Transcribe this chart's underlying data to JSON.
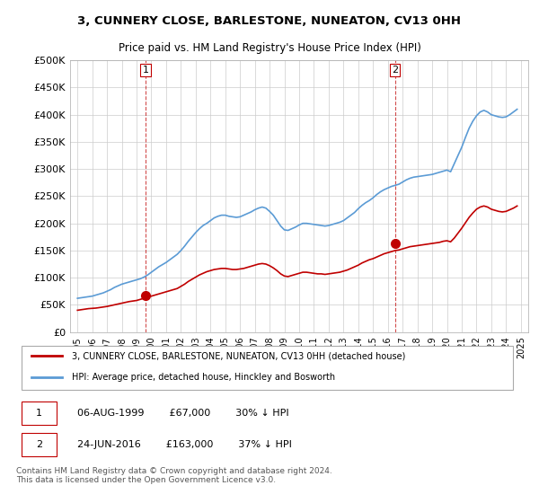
{
  "title": "3, CUNNERY CLOSE, BARLESTONE, NUNEATON, CV13 0HH",
  "subtitle": "Price paid vs. HM Land Registry's House Price Index (HPI)",
  "xlabel": "",
  "ylabel": "",
  "ylim": [
    0,
    500000
  ],
  "yticks": [
    0,
    50000,
    100000,
    150000,
    200000,
    250000,
    300000,
    350000,
    400000,
    450000,
    500000
  ],
  "ytick_labels": [
    "£0",
    "£50K",
    "£100K",
    "£150K",
    "£200K",
    "£250K",
    "£300K",
    "£350K",
    "£400K",
    "£450K",
    "£500K"
  ],
  "x_start_year": 1995,
  "x_end_year": 2025,
  "background_color": "#ffffff",
  "plot_bg_color": "#ffffff",
  "grid_color": "#cccccc",
  "hpi_color": "#5b9bd5",
  "price_color": "#c00000",
  "sale1_date": "1999-08-06",
  "sale1_price": 67000,
  "sale2_date": "2016-06-24",
  "sale2_price": 163000,
  "legend_label_price": "3, CUNNERY CLOSE, BARLESTONE, NUNEATON, CV13 0HH (detached house)",
  "legend_label_hpi": "HPI: Average price, detached house, Hinckley and Bosworth",
  "annotation1_label": "1",
  "annotation1_text": "06-AUG-1999        £67,000        30% ↓ HPI",
  "annotation2_label": "2",
  "annotation2_text": "24-JUN-2016        £163,000        37% ↓ HPI",
  "footer": "Contains HM Land Registry data © Crown copyright and database right 2024.\nThis data is licensed under the Open Government Licence v3.0.",
  "hpi_data": {
    "years": [
      1995.0,
      1995.25,
      1995.5,
      1995.75,
      1996.0,
      1996.25,
      1996.5,
      1996.75,
      1997.0,
      1997.25,
      1997.5,
      1997.75,
      1998.0,
      1998.25,
      1998.5,
      1998.75,
      1999.0,
      1999.25,
      1999.5,
      1999.75,
      2000.0,
      2000.25,
      2000.5,
      2000.75,
      2001.0,
      2001.25,
      2001.5,
      2001.75,
      2002.0,
      2002.25,
      2002.5,
      2002.75,
      2003.0,
      2003.25,
      2003.5,
      2003.75,
      2004.0,
      2004.25,
      2004.5,
      2004.75,
      2005.0,
      2005.25,
      2005.5,
      2005.75,
      2006.0,
      2006.25,
      2006.5,
      2006.75,
      2007.0,
      2007.25,
      2007.5,
      2007.75,
      2008.0,
      2008.25,
      2008.5,
      2008.75,
      2009.0,
      2009.25,
      2009.5,
      2009.75,
      2010.0,
      2010.25,
      2010.5,
      2010.75,
      2011.0,
      2011.25,
      2011.5,
      2011.75,
      2012.0,
      2012.25,
      2012.5,
      2012.75,
      2013.0,
      2013.25,
      2013.5,
      2013.75,
      2014.0,
      2014.25,
      2014.5,
      2014.75,
      2015.0,
      2015.25,
      2015.5,
      2015.75,
      2016.0,
      2016.25,
      2016.5,
      2016.75,
      2017.0,
      2017.25,
      2017.5,
      2017.75,
      2018.0,
      2018.25,
      2018.5,
      2018.75,
      2019.0,
      2019.25,
      2019.5,
      2019.75,
      2020.0,
      2020.25,
      2020.5,
      2020.75,
      2021.0,
      2021.25,
      2021.5,
      2021.75,
      2022.0,
      2022.25,
      2022.5,
      2022.75,
      2023.0,
      2023.25,
      2023.5,
      2023.75,
      2024.0,
      2024.25,
      2024.5,
      2024.75
    ],
    "values": [
      62000,
      63000,
      64000,
      65000,
      66000,
      68000,
      70000,
      72000,
      75000,
      78000,
      82000,
      85000,
      88000,
      90000,
      92000,
      94000,
      96000,
      98000,
      101000,
      105000,
      110000,
      115000,
      120000,
      124000,
      128000,
      133000,
      138000,
      143000,
      150000,
      158000,
      167000,
      175000,
      183000,
      190000,
      196000,
      200000,
      205000,
      210000,
      213000,
      215000,
      215000,
      213000,
      212000,
      211000,
      212000,
      215000,
      218000,
      221000,
      225000,
      228000,
      230000,
      228000,
      222000,
      215000,
      205000,
      195000,
      188000,
      187000,
      190000,
      193000,
      197000,
      200000,
      200000,
      199000,
      198000,
      197000,
      196000,
      195000,
      196000,
      198000,
      200000,
      202000,
      205000,
      210000,
      215000,
      220000,
      227000,
      233000,
      238000,
      242000,
      247000,
      253000,
      258000,
      262000,
      265000,
      268000,
      270000,
      272000,
      276000,
      280000,
      283000,
      285000,
      286000,
      287000,
      288000,
      289000,
      290000,
      292000,
      294000,
      296000,
      298000,
      295000,
      310000,
      325000,
      340000,
      358000,
      375000,
      388000,
      398000,
      405000,
      408000,
      405000,
      400000,
      398000,
      396000,
      395000,
      396000,
      400000,
      405000,
      410000
    ]
  },
  "price_index_data": {
    "years": [
      1995.0,
      1995.25,
      1995.5,
      1995.75,
      1996.0,
      1996.25,
      1996.5,
      1996.75,
      1997.0,
      1997.25,
      1997.5,
      1997.75,
      1998.0,
      1998.25,
      1998.5,
      1998.75,
      1999.0,
      1999.25,
      1999.5,
      1999.75,
      2000.0,
      2000.25,
      2000.5,
      2000.75,
      2001.0,
      2001.25,
      2001.5,
      2001.75,
      2002.0,
      2002.25,
      2002.5,
      2002.75,
      2003.0,
      2003.25,
      2003.5,
      2003.75,
      2004.0,
      2004.25,
      2004.5,
      2004.75,
      2005.0,
      2005.25,
      2005.5,
      2005.75,
      2006.0,
      2006.25,
      2006.5,
      2006.75,
      2007.0,
      2007.25,
      2007.5,
      2007.75,
      2008.0,
      2008.25,
      2008.5,
      2008.75,
      2009.0,
      2009.25,
      2009.5,
      2009.75,
      2010.0,
      2010.25,
      2010.5,
      2010.75,
      2011.0,
      2011.25,
      2011.5,
      2011.75,
      2012.0,
      2012.25,
      2012.5,
      2012.75,
      2013.0,
      2013.25,
      2013.5,
      2013.75,
      2014.0,
      2014.25,
      2014.5,
      2014.75,
      2015.0,
      2015.25,
      2015.5,
      2015.75,
      2016.0,
      2016.25,
      2016.5,
      2016.75,
      2017.0,
      2017.25,
      2017.5,
      2017.75,
      2018.0,
      2018.25,
      2018.5,
      2018.75,
      2019.0,
      2019.25,
      2019.5,
      2019.75,
      2020.0,
      2020.25,
      2020.5,
      2020.75,
      2021.0,
      2021.25,
      2021.5,
      2021.75,
      2022.0,
      2022.25,
      2022.5,
      2022.75,
      2023.0,
      2023.25,
      2023.5,
      2023.75,
      2024.0,
      2024.25,
      2024.5,
      2024.75
    ],
    "values": [
      40000,
      41000,
      42000,
      43000,
      43500,
      44000,
      45000,
      46000,
      47000,
      48500,
      50000,
      51500,
      53000,
      54500,
      56000,
      57000,
      58000,
      60000,
      62000,
      64000,
      66000,
      68000,
      70000,
      72000,
      74000,
      76000,
      78000,
      80000,
      84000,
      88000,
      93000,
      97000,
      101000,
      105000,
      108000,
      111000,
      113000,
      115000,
      116000,
      117000,
      117000,
      116000,
      115000,
      115000,
      116000,
      117000,
      119000,
      121000,
      123000,
      125000,
      126000,
      125000,
      122000,
      118000,
      113000,
      107000,
      103000,
      102000,
      104000,
      106000,
      108000,
      110000,
      110000,
      109000,
      108000,
      107000,
      107000,
      106000,
      107000,
      108000,
      109000,
      110000,
      112000,
      114000,
      117000,
      120000,
      123000,
      127000,
      130000,
      133000,
      135000,
      138000,
      141000,
      144000,
      146000,
      148000,
      150000,
      151000,
      153000,
      155000,
      157000,
      158000,
      159000,
      160000,
      161000,
      162000,
      163000,
      164000,
      165000,
      167000,
      168000,
      166000,
      173000,
      182000,
      191000,
      201000,
      211000,
      219000,
      226000,
      230000,
      232000,
      230000,
      226000,
      224000,
      222000,
      221000,
      222000,
      225000,
      228000,
      232000
    ]
  }
}
